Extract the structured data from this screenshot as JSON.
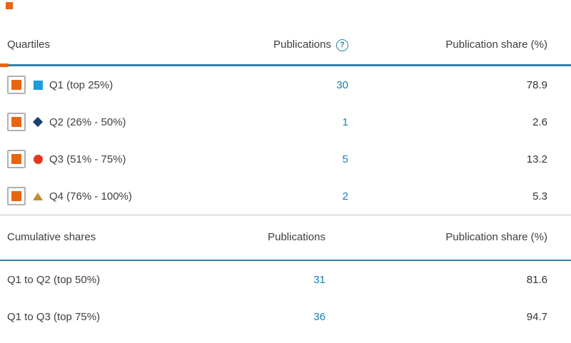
{
  "colors": {
    "separator_blue": "#3180a9",
    "section_divider_gray": "#c6c6c6",
    "link_blue": "#1680b6",
    "checkbox_orange": "#e8650f",
    "checkbox_border_gray": "#b0b0b0",
    "q1_blue": "#1e9bd9",
    "q2_navy": "#1b3e6f",
    "q3_red": "#e5391e",
    "q4_gold": "#bf8f2e",
    "help_icon_blue": "#2e7fa9",
    "fragment_orange": "#e8650f"
  },
  "help_icon_glyph": "?",
  "sections": [
    {
      "header": {
        "label_col": "Quartiles",
        "publications_col": "Publications",
        "share_col": "Publication share (%)"
      },
      "rows": [
        {
          "label": "Q1 (top 25%)",
          "marker": "square",
          "checked": true,
          "publications": "30",
          "share": "78.9"
        },
        {
          "label": "Q2 (26% - 50%)",
          "marker": "diamond",
          "checked": true,
          "publications": "1",
          "share": "2.6"
        },
        {
          "label": "Q3 (51% - 75%)",
          "marker": "circle",
          "checked": true,
          "publications": "5",
          "share": "13.2"
        },
        {
          "label": "Q4 (76% - 100%)",
          "marker": "triangle",
          "checked": true,
          "publications": "2",
          "share": "5.3"
        }
      ]
    },
    {
      "header": {
        "label_col": "Cumulative shares",
        "publications_col": "Publications",
        "share_col": "Publication share (%)"
      },
      "rows": [
        {
          "label": "Q1 to Q2 (top 50%)",
          "publications": "31",
          "share": "81.6"
        },
        {
          "label": "Q1 to Q3 (top 75%)",
          "publications": "36",
          "share": "94.7"
        }
      ]
    }
  ]
}
